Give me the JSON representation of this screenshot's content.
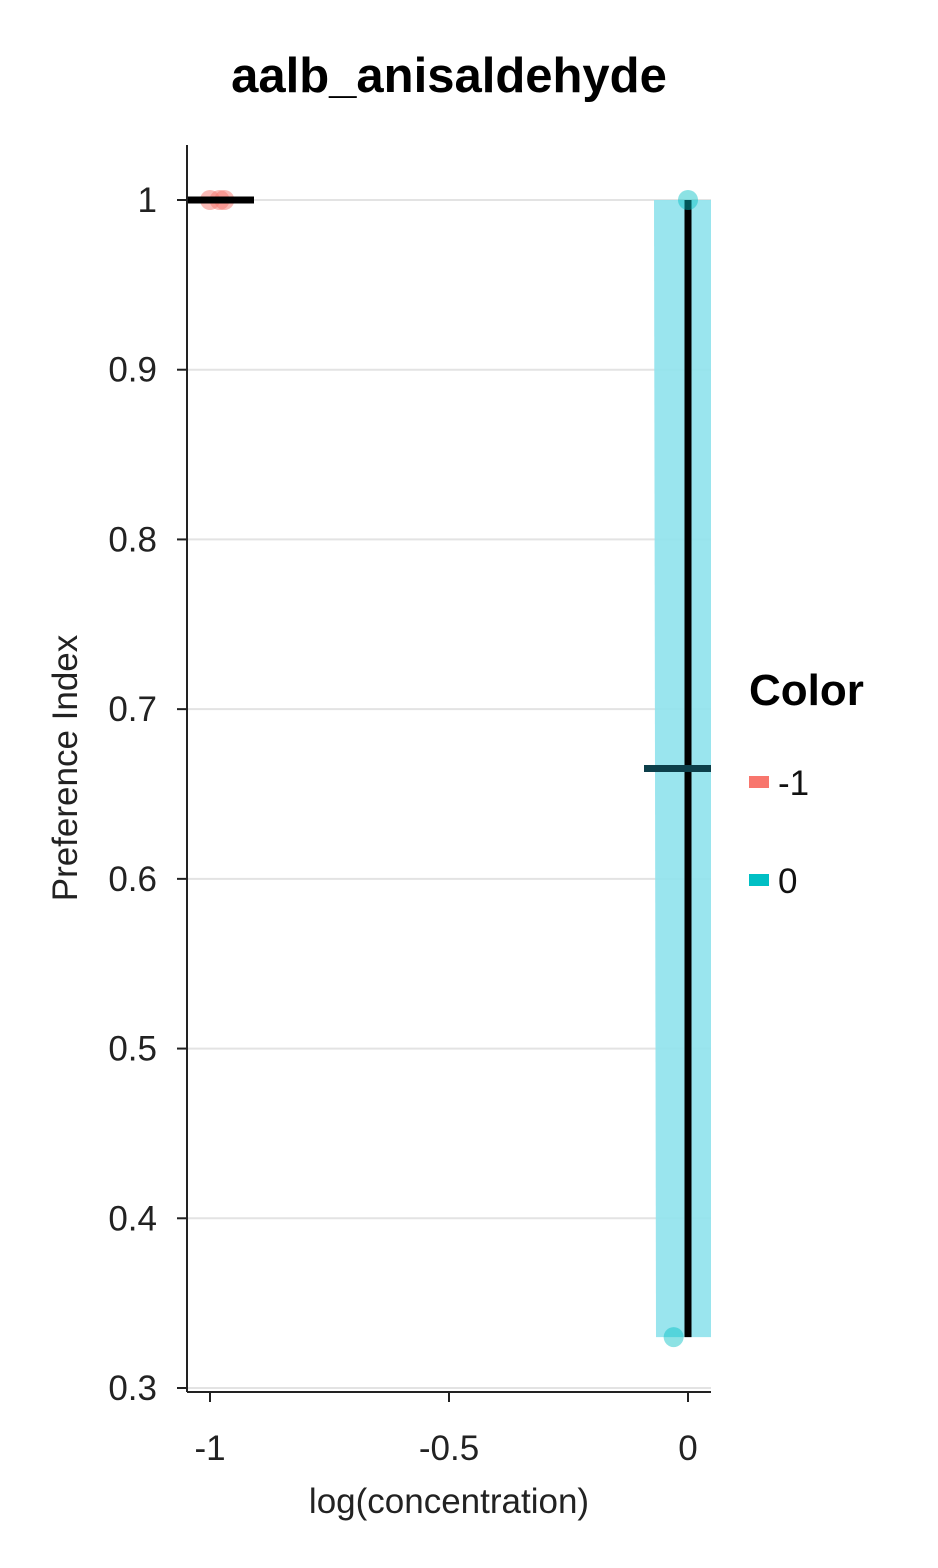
{
  "chart_data": {
    "type": "scatter",
    "title": "aalb_anisaldehyde",
    "xlabel": "log(concentration)",
    "ylabel": "Preference Index",
    "xlim": [
      -1.05,
      0.05
    ],
    "ylim": [
      0.3,
      1.0
    ],
    "x_ticks": [
      {
        "value": -1,
        "label": "-1"
      },
      {
        "value": -0.5,
        "label": "-0.5"
      },
      {
        "value": 0,
        "label": "0"
      }
    ],
    "y_ticks": [
      {
        "value": 0.3,
        "label": "0.3"
      },
      {
        "value": 0.4,
        "label": "0.4"
      },
      {
        "value": 0.5,
        "label": "0.5"
      },
      {
        "value": 0.6,
        "label": "0.6"
      },
      {
        "value": 0.7,
        "label": "0.7"
      },
      {
        "value": 0.8,
        "label": "0.8"
      },
      {
        "value": 0.9,
        "label": "0.9"
      },
      {
        "value": 1.0,
        "label": "1"
      }
    ],
    "grid": "horizontal",
    "legend": {
      "title": "Color",
      "placement": "right",
      "entries": [
        {
          "label": "-1",
          "color": "#F8766D"
        },
        {
          "label": "0",
          "color": "#00BFC4"
        }
      ]
    },
    "series": [
      {
        "name": "-1",
        "color": "#F8766D",
        "points": [
          {
            "x": -1.0,
            "y": 1.0
          },
          {
            "x": -0.98,
            "y": 1.0
          },
          {
            "x": -0.97,
            "y": 1.0
          }
        ],
        "mean": 1.0,
        "range": [
          1.0,
          1.0
        ]
      },
      {
        "name": "0",
        "color": "#00BFC4",
        "points": [
          {
            "x": 0.0,
            "y": 1.0
          },
          {
            "x": -0.03,
            "y": 0.33
          }
        ],
        "mean": 0.665,
        "range": [
          0.33,
          1.0
        ]
      }
    ]
  }
}
